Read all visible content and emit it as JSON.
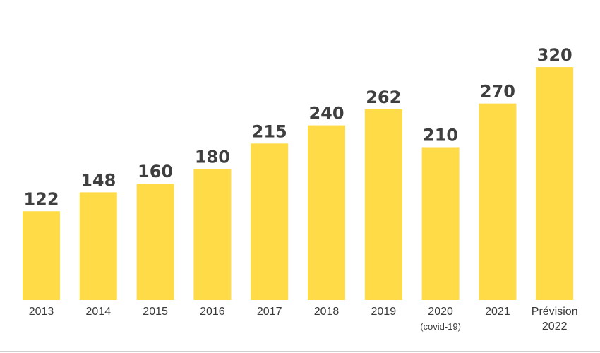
{
  "chart_data": {
    "type": "bar",
    "title": "",
    "xlabel": "",
    "ylabel": "",
    "categories": [
      [
        "2013"
      ],
      [
        "2014"
      ],
      [
        "2015"
      ],
      [
        "2016"
      ],
      [
        "2017"
      ],
      [
        "2018"
      ],
      [
        "2019"
      ],
      [
        "2020",
        "(covid-19)"
      ],
      [
        "2021"
      ],
      [
        "Prévision",
        "2022"
      ]
    ],
    "values": [
      122,
      148,
      160,
      180,
      215,
      240,
      262,
      210,
      270,
      320
    ],
    "ylim": [
      0,
      330
    ],
    "grid": false,
    "legend": "none",
    "bar_color": "#FFDC47",
    "label_color": "#3f3f3f"
  }
}
